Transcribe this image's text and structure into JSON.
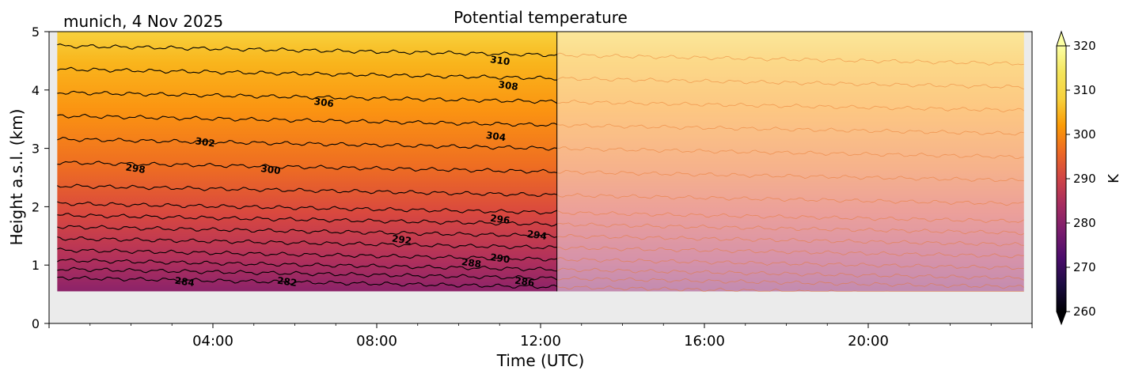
{
  "location_date": "munich, 4 Nov 2025",
  "chart_data": {
    "type": "heatmap",
    "title": "Potential temperature",
    "xlabel": "Time (UTC)",
    "ylabel": "Height a.s.l. (km)",
    "colorbar_label": "K",
    "colormap": "inferno",
    "colorbar_range": [
      260,
      320
    ],
    "colorbar_ticks": [
      "260",
      "270",
      "280",
      "290",
      "300",
      "310",
      "320"
    ],
    "x_range_hours": [
      0,
      24
    ],
    "x_ticks": [
      {
        "hour": 4,
        "label": "04:00"
      },
      {
        "hour": 8,
        "label": "08:00"
      },
      {
        "hour": 12,
        "label": "12:00"
      },
      {
        "hour": 16,
        "label": "16:00"
      },
      {
        "hour": 20,
        "label": "20:00"
      }
    ],
    "ylim_km": [
      0,
      5
    ],
    "y_ticks": [
      "0",
      "1",
      "2",
      "3",
      "4",
      "5"
    ],
    "data_extent": {
      "start_hour": 0.2,
      "end_hour": 23.8,
      "bottom_km": 0.55,
      "top_km": 5.0
    },
    "forecast_start_hour": 12.4,
    "contour_interval_K": 2,
    "contour_levels_K": [
      282,
      284,
      286,
      288,
      290,
      292,
      294,
      296,
      298,
      300,
      302,
      304,
      306,
      308,
      310
    ],
    "theta_profile": [
      {
        "height_km": 0.55,
        "theta_K": 281
      },
      {
        "height_km": 1.0,
        "theta_K": 287
      },
      {
        "height_km": 2.0,
        "theta_K": 297
      },
      {
        "height_km": 3.0,
        "theta_K": 302
      },
      {
        "height_km": 4.0,
        "theta_K": 307
      },
      {
        "height_km": 5.0,
        "theta_K": 312
      }
    ],
    "contour_labels": [
      {
        "value": "310",
        "hour": 11.0,
        "km": 4.45
      },
      {
        "value": "308",
        "hour": 11.2,
        "km": 4.02
      },
      {
        "value": "306",
        "hour": 6.7,
        "km": 3.73
      },
      {
        "value": "304",
        "hour": 10.9,
        "km": 3.15
      },
      {
        "value": "302",
        "hour": 3.8,
        "km": 3.05
      },
      {
        "value": "300",
        "hour": 5.4,
        "km": 2.58
      },
      {
        "value": "298",
        "hour": 2.1,
        "km": 2.6
      },
      {
        "value": "296",
        "hour": 11.0,
        "km": 1.73
      },
      {
        "value": "294",
        "hour": 11.9,
        "km": 1.46
      },
      {
        "value": "292",
        "hour": 8.6,
        "km": 1.38
      },
      {
        "value": "290",
        "hour": 11.0,
        "km": 1.06
      },
      {
        "value": "288",
        "hour": 10.3,
        "km": 0.98
      },
      {
        "value": "286",
        "hour": 11.6,
        "km": 0.66
      },
      {
        "value": "284",
        "hour": 3.3,
        "km": 0.66
      },
      {
        "value": "282",
        "hour": 5.8,
        "km": 0.66
      }
    ]
  }
}
